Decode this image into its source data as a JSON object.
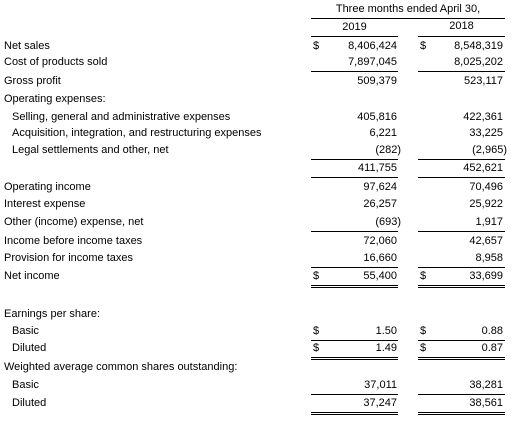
{
  "header": {
    "period": "Three months ended April 30,",
    "years": [
      "2019",
      "2018"
    ]
  },
  "rows": [
    {
      "label": "Net sales",
      "c1": "$",
      "v1": "8,406,424",
      "c2": "$",
      "v2": "8,548,319"
    },
    {
      "label": "Cost of products sold",
      "v1": "7,897,045",
      "v2": "8,025,202"
    },
    {
      "label": "Gross profit",
      "v1": "509,379",
      "v2": "523,117"
    },
    {
      "label": "Operating expenses:"
    },
    {
      "label": "Selling, general and administrative expenses",
      "v1": "405,816",
      "v2": "422,361"
    },
    {
      "label": "Acquisition, integration, and restructuring expenses",
      "v1": "6,221",
      "v2": "33,225"
    },
    {
      "label": "Legal settlements and other, net",
      "v1": "(282)",
      "v2": "(2,965)"
    },
    {
      "v1": "411,755",
      "v2": "452,621"
    },
    {
      "label": "Operating income",
      "v1": "97,624",
      "v2": "70,496"
    },
    {
      "label": "Interest expense",
      "v1": "26,257",
      "v2": "25,922"
    },
    {
      "label": "Other (income) expense, net",
      "v1": "(693)",
      "v2": "1,917"
    },
    {
      "label": "Income before income taxes",
      "v1": "72,060",
      "v2": "42,657"
    },
    {
      "label": "Provision for income taxes",
      "v1": "16,660",
      "v2": "8,958"
    },
    {
      "label": "Net income",
      "c1": "$",
      "v1": "55,400",
      "c2": "$",
      "v2": "33,699"
    },
    {
      "label": "Earnings per share:"
    },
    {
      "label": "Basic",
      "c1": "$",
      "v1": "1.50",
      "c2": "$",
      "v2": "0.88"
    },
    {
      "label": "Diluted",
      "c1": "$",
      "v1": "1.49",
      "c2": "$",
      "v2": "0.87"
    },
    {
      "label": "Weighted average common shares outstanding:"
    },
    {
      "label": "Basic",
      "v1": "37,011",
      "v2": "38,281"
    },
    {
      "label": "Diluted",
      "v1": "37,247",
      "v2": "38,561"
    }
  ]
}
